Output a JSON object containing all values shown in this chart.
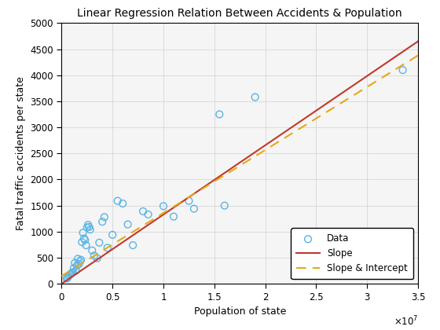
{
  "title": "Linear Regression Relation Between Accidents & Population",
  "xlabel": "Population of state",
  "ylabel": "Fatal traffic accidents per state",
  "xlim": [
    0,
    35000000.0
  ],
  "ylim": [
    0,
    5000
  ],
  "xtick_vals": [
    0,
    5000000,
    10000000,
    15000000,
    20000000,
    25000000,
    30000000,
    35000000
  ],
  "xtick_labels": [
    "0",
    "0.5",
    "1",
    "1.5",
    "2",
    "2.5",
    "3",
    "3.5"
  ],
  "yticks": [
    0,
    500,
    1000,
    1500,
    2000,
    2500,
    3000,
    3500,
    4000,
    4500,
    5000
  ],
  "scatter_x": [
    500000,
    600000,
    700000,
    800000,
    900000,
    1000000,
    1100000,
    1200000,
    1300000,
    1400000,
    1500000,
    1600000,
    1700000,
    1800000,
    1900000,
    2000000,
    2100000,
    2200000,
    2300000,
    2400000,
    2500000,
    2600000,
    2700000,
    2800000,
    3000000,
    3200000,
    3500000,
    3700000,
    4000000,
    4200000,
    4500000,
    5000000,
    5500000,
    6000000,
    6500000,
    7000000,
    8000000,
    8500000,
    10000000,
    11000000,
    12500000,
    13000000,
    15500000,
    16000000,
    19000000,
    33500000
  ],
  "scatter_y": [
    100,
    120,
    150,
    170,
    190,
    210,
    220,
    300,
    400,
    250,
    350,
    480,
    380,
    430,
    460,
    800,
    980,
    870,
    840,
    740,
    1080,
    1130,
    1090,
    1040,
    640,
    540,
    490,
    790,
    1190,
    1280,
    690,
    940,
    1590,
    1540,
    1140,
    740,
    1390,
    1330,
    1490,
    1290,
    1590,
    1440,
    3250,
    1500,
    3580,
    4100
  ],
  "slope_line_x": [
    0,
    35000000
  ],
  "slope_line_y": [
    0,
    4650
  ],
  "intercept_line_x": [
    0,
    35000000
  ],
  "intercept_line_y": [
    150,
    4380
  ],
  "scatter_color": "#5ab4e5",
  "slope_color": "#c0392b",
  "intercept_color": "#e6a817",
  "background_color": "#ffffff",
  "grid_color": "#d0d0d0",
  "axes_bg_color": "#f5f5f5"
}
